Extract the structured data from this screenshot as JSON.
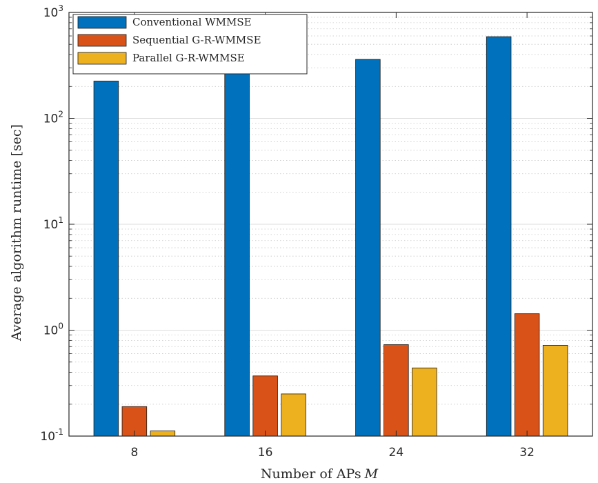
{
  "chart_data": {
    "type": "bar",
    "title": "",
    "xlabel": "Number of APs",
    "xlabel_var": "M",
    "ylabel": "Average algorithm runtime [sec]",
    "yscale": "log",
    "ylim": [
      0.1,
      1000
    ],
    "ytick_base": "10",
    "ytick_exponents": [
      "-1",
      "0",
      "1",
      "2",
      "3"
    ],
    "categories": [
      "8",
      "16",
      "24",
      "32"
    ],
    "series": [
      {
        "name": "Conventional WMMSE",
        "color": "#0072BD",
        "values": [
          225,
          285,
          360,
          590
        ]
      },
      {
        "name": "Sequential G-R-WMMSE",
        "color": "#D95319",
        "values": [
          0.19,
          0.37,
          0.73,
          1.43
        ]
      },
      {
        "name": "Parallel G-R-WMMSE",
        "color": "#EDB120",
        "values": [
          0.112,
          0.25,
          0.44,
          0.72
        ]
      }
    ],
    "grid": true,
    "minor_grid": true,
    "legend_position": "top-left"
  }
}
